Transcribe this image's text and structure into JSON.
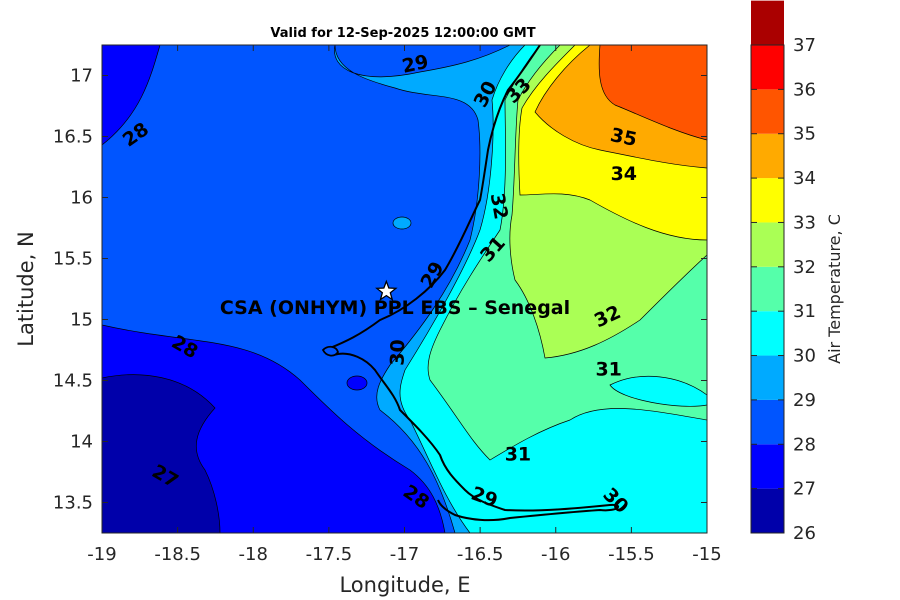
{
  "title": "Valid for 12-Sep-2025 12:00:00 GMT",
  "map": {
    "xlabel": "Longitude, E",
    "ylabel": "Latitude, N",
    "xlim": [
      -19,
      -15
    ],
    "ylim": [
      13.25,
      17.25
    ],
    "xticks": [
      -19,
      -18.5,
      -18,
      -17.5,
      -17,
      -16.5,
      -16,
      -15.5,
      -15
    ],
    "yticks": [
      13.5,
      14,
      14.5,
      15,
      15.5,
      16,
      16.5,
      17
    ],
    "site_label": "CSA (ONHYM) PPL EBS  – Senegal",
    "site_lon": -17.12,
    "site_lat": 15.23,
    "contour_labels": [
      {
        "text": "29",
        "lon": -16.93,
        "lat": 17.1,
        "rot": -12
      },
      {
        "text": "30",
        "lon": -16.47,
        "lat": 16.85,
        "rot": -62
      },
      {
        "text": "33",
        "lon": -16.25,
        "lat": 16.88,
        "rot": -45
      },
      {
        "text": "35",
        "lon": -15.55,
        "lat": 16.5,
        "rot": 12
      },
      {
        "text": "34",
        "lon": -15.55,
        "lat": 16.2,
        "rot": 0
      },
      {
        "text": "28",
        "lon": -18.78,
        "lat": 16.52,
        "rot": -35
      },
      {
        "text": "32",
        "lon": -16.37,
        "lat": 15.93,
        "rot": 80
      },
      {
        "text": "31",
        "lon": -16.42,
        "lat": 15.58,
        "rot": -48
      },
      {
        "text": "29",
        "lon": -16.82,
        "lat": 15.37,
        "rot": -60
      },
      {
        "text": "32",
        "lon": -15.66,
        "lat": 15.03,
        "rot": -25
      },
      {
        "text": "28",
        "lon": -18.45,
        "lat": 14.78,
        "rot": 30
      },
      {
        "text": "30",
        "lon": -17.05,
        "lat": 14.73,
        "rot": -88
      },
      {
        "text": "31",
        "lon": -15.65,
        "lat": 14.6,
        "rot": 0
      },
      {
        "text": "31",
        "lon": -16.25,
        "lat": 13.9,
        "rot": 0
      },
      {
        "text": "27",
        "lon": -18.58,
        "lat": 13.72,
        "rot": 30
      },
      {
        "text": "28",
        "lon": -16.92,
        "lat": 13.55,
        "rot": 35
      },
      {
        "text": "29",
        "lon": -16.47,
        "lat": 13.55,
        "rot": 20
      },
      {
        "text": "30",
        "lon": -15.6,
        "lat": 13.52,
        "rot": 45
      }
    ]
  },
  "colorbar": {
    "label": "Air Temperature, C",
    "levels": [
      26,
      27,
      28,
      29,
      30,
      31,
      32,
      33,
      34,
      35,
      36,
      37
    ],
    "colors": [
      "#0000aa",
      "#0000ff",
      "#0055ff",
      "#00aaff",
      "#00ffff",
      "#55ffaa",
      "#aaff55",
      "#ffff00",
      "#ffaa00",
      "#ff5500",
      "#ff0000",
      "#aa0000"
    ]
  }
}
